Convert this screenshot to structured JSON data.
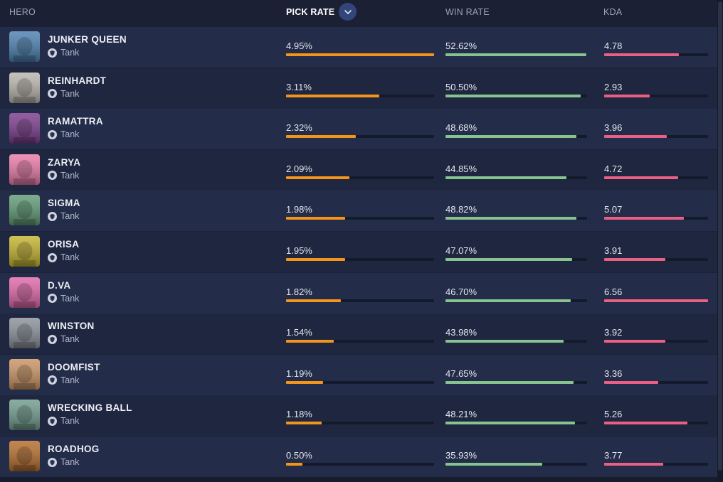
{
  "header": {
    "hero": "HERO",
    "pick_rate": "PICK RATE",
    "win_rate": "WIN RATE",
    "kda": "KDA",
    "sort_icon": "chevron-down-icon"
  },
  "colors": {
    "pick_bar": "#f3941b",
    "win_bar": "#86c38f",
    "kda_bar": "#ec5f84",
    "sort_button": "#33467a"
  },
  "heroes": [
    {
      "name": "JUNKER QUEEN",
      "role": "Tank",
      "pick": "4.95%",
      "pick_fill": 1.0,
      "win": "52.62%",
      "win_fill": 0.995,
      "kda": "4.78",
      "kda_fill": 0.72,
      "avatar_color": "#4a7fb0"
    },
    {
      "name": "REINHARDT",
      "role": "Tank",
      "pick": "3.11%",
      "pick_fill": 0.63,
      "win": "50.50%",
      "win_fill": 0.955,
      "kda": "2.93",
      "kda_fill": 0.44,
      "avatar_color": "#b9b5ad"
    },
    {
      "name": "RAMATTRA",
      "role": "Tank",
      "pick": "2.32%",
      "pick_fill": 0.47,
      "win": "48.68%",
      "win_fill": 0.925,
      "kda": "3.96",
      "kda_fill": 0.6,
      "avatar_color": "#7a3a8c"
    },
    {
      "name": "ZARYA",
      "role": "Tank",
      "pick": "2.09%",
      "pick_fill": 0.43,
      "win": "44.85%",
      "win_fill": 0.855,
      "kda": "4.72",
      "kda_fill": 0.71,
      "avatar_color": "#e879a6"
    },
    {
      "name": "SIGMA",
      "role": "Tank",
      "pick": "1.98%",
      "pick_fill": 0.4,
      "win": "48.82%",
      "win_fill": 0.925,
      "kda": "5.07",
      "kda_fill": 0.77,
      "avatar_color": "#5e9a74"
    },
    {
      "name": "ORISA",
      "role": "Tank",
      "pick": "1.95%",
      "pick_fill": 0.4,
      "win": "47.07%",
      "win_fill": 0.895,
      "kda": "3.91",
      "kda_fill": 0.59,
      "avatar_color": "#c3b22c"
    },
    {
      "name": "D.VA",
      "role": "Tank",
      "pick": "1.82%",
      "pick_fill": 0.37,
      "win": "46.70%",
      "win_fill": 0.885,
      "kda": "6.56",
      "kda_fill": 1.0,
      "avatar_color": "#e066a8"
    },
    {
      "name": "WINSTON",
      "role": "Tank",
      "pick": "1.54%",
      "pick_fill": 0.32,
      "win": "43.98%",
      "win_fill": 0.835,
      "kda": "3.92",
      "kda_fill": 0.59,
      "avatar_color": "#8a8f99"
    },
    {
      "name": "DOOMFIST",
      "role": "Tank",
      "pick": "1.19%",
      "pick_fill": 0.25,
      "win": "47.65%",
      "win_fill": 0.905,
      "kda": "3.36",
      "kda_fill": 0.52,
      "avatar_color": "#c99362"
    },
    {
      "name": "WRECKING BALL",
      "role": "Tank",
      "pick": "1.18%",
      "pick_fill": 0.24,
      "win": "48.21%",
      "win_fill": 0.915,
      "kda": "5.26",
      "kda_fill": 0.8,
      "avatar_color": "#6f9a8c"
    },
    {
      "name": "ROADHOG",
      "role": "Tank",
      "pick": "0.50%",
      "pick_fill": 0.11,
      "win": "35.93%",
      "win_fill": 0.685,
      "kda": "3.77",
      "kda_fill": 0.57,
      "avatar_color": "#b46c2b"
    }
  ]
}
